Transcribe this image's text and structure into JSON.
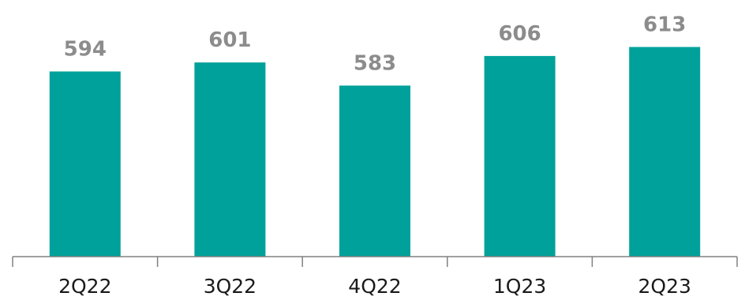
{
  "chart_data": {
    "type": "bar",
    "title": "",
    "xlabel": "",
    "ylabel": "",
    "categories": [
      "2Q22",
      "3Q22",
      "4Q22",
      "1Q23",
      "2Q23"
    ],
    "values": [
      594,
      601,
      583,
      606,
      613
    ],
    "data_labels": [
      "594",
      "601",
      "583",
      "606",
      "613"
    ],
    "ylim": [
      450,
      625
    ],
    "grid": false,
    "legend": "none",
    "bar_color": "#00A19A",
    "label_color": "#8C8C8C",
    "axis_color": "#808080"
  }
}
